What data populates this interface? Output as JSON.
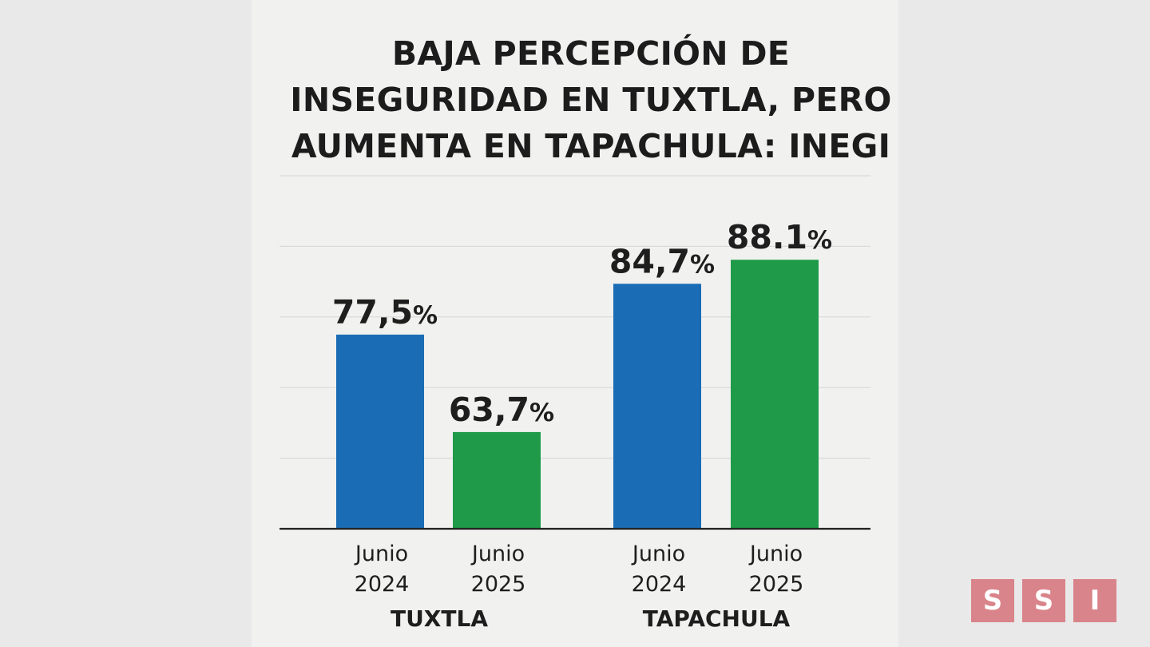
{
  "chart_data": {
    "type": "bar",
    "title": "BAJA PERCEPCIÓN DE INSEGURIDAD EN TUXTLA, PERO AUMENTA EN TAPACHULA: INEGI",
    "title_lines": [
      "BAJA PERCEPCIÓN DE",
      "INSEGURIDAD EN TUXTLA, PERO",
      "AUMENTA EN TAPACHULA: INEGI"
    ],
    "groups": [
      {
        "name": "TUXTLA",
        "bars": [
          {
            "category": [
              "Junio",
              "2024"
            ],
            "value": 77.5,
            "label": "77,5",
            "unit": "%",
            "color": "#1a6db5"
          },
          {
            "category": [
              "Junio",
              "2025"
            ],
            "value": 63.7,
            "label": "63,7",
            "unit": "%",
            "color": "#1e9a48"
          }
        ]
      },
      {
        "name": "TAPACHULA",
        "bars": [
          {
            "category": [
              "Junio",
              "2024"
            ],
            "value": 84.7,
            "label": "84,7",
            "unit": "%",
            "color": "#1a6db5"
          },
          {
            "category": [
              "Junio",
              "2025"
            ],
            "value": 88.1,
            "label": "88.1",
            "unit": "%",
            "color": "#1e9a48"
          }
        ]
      }
    ],
    "grid": true,
    "legend": "none",
    "ylim": [
      50,
      100
    ]
  },
  "logo": {
    "letters": [
      "S",
      "S",
      "I"
    ],
    "color": "#d9848a"
  }
}
